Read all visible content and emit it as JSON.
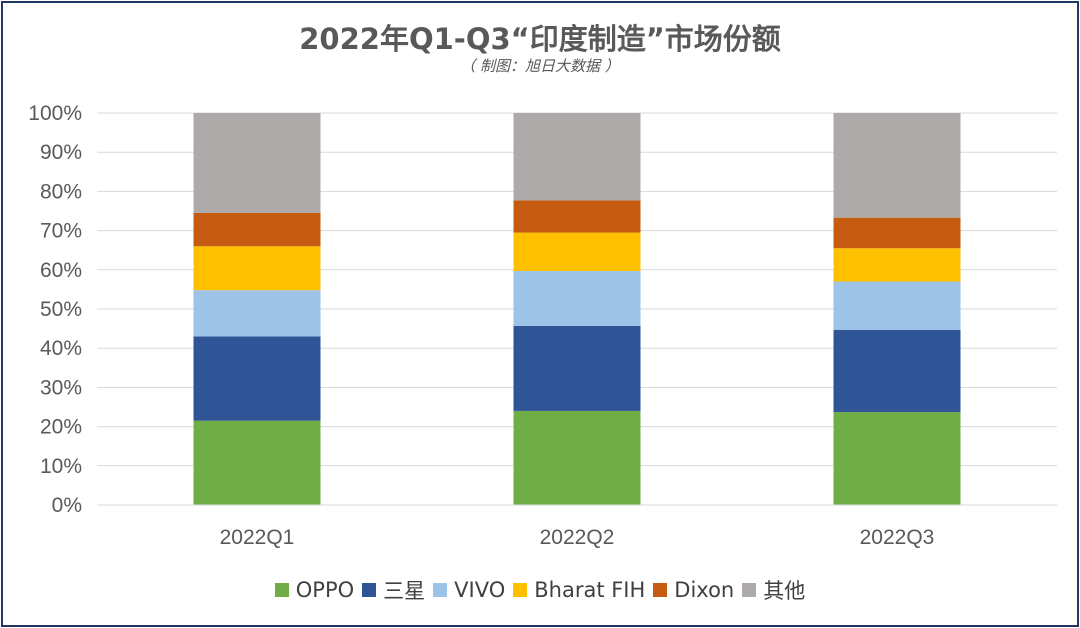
{
  "chart_data": {
    "type": "bar",
    "stacked": true,
    "title": "2022年Q1-Q3“印度制造”市场份额",
    "subtitle": "（ 制图：旭日大数据 ）",
    "categories": [
      "2022Q1",
      "2022Q2",
      "2022Q3"
    ],
    "ylim": [
      0,
      100
    ],
    "ytick_labels": [
      "0%",
      "10%",
      "20%",
      "30%",
      "40%",
      "50%",
      "60%",
      "70%",
      "80%",
      "90%",
      "100%"
    ],
    "grid": true,
    "legend_position": "bottom",
    "series": [
      {
        "name": "OPPO",
        "color": "#70ad47",
        "values": [
          21.5,
          24,
          23.7
        ]
      },
      {
        "name": "三星",
        "color": "#2f5597",
        "values": [
          21.5,
          21.7,
          21
        ]
      },
      {
        "name": "VIVO",
        "color": "#9dc3e6",
        "values": [
          11.8,
          14,
          12.3
        ]
      },
      {
        "name": "Bharat FIH",
        "color": "#ffc000",
        "values": [
          11.2,
          9.8,
          8.5
        ]
      },
      {
        "name": "Dixon",
        "color": "#c55a11",
        "values": [
          8.5,
          8.2,
          7.8
        ]
      },
      {
        "name": "其他",
        "color": "#aeaaaa",
        "values": [
          25.5,
          22.3,
          26.7
        ]
      }
    ]
  }
}
